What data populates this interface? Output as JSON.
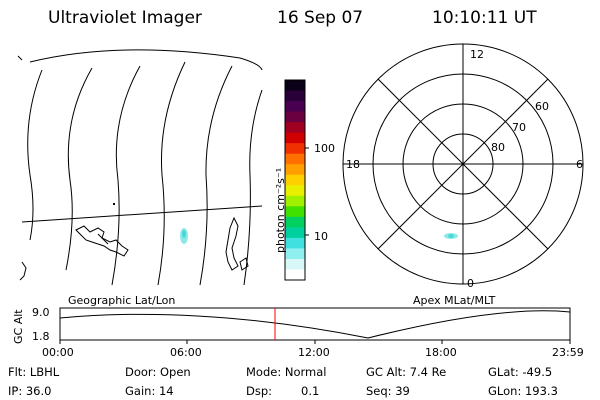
{
  "header": {
    "title": "Ultraviolet Imager",
    "date": "16 Sep 07",
    "time": "10:10:11 UT"
  },
  "colorbar": {
    "unit_label": "photon cm⁻²s⁻¹",
    "ticks": [
      "100",
      "10"
    ],
    "colors": [
      "#0a0018",
      "#2a0038",
      "#4a0050",
      "#6a0040",
      "#a00020",
      "#d00000",
      "#f03000",
      "#ff7000",
      "#ffa000",
      "#ffd000",
      "#e8f000",
      "#a0f000",
      "#40e000",
      "#00d060",
      "#00d0a0",
      "#40e0e0",
      "#90f0f0",
      "#d8f8f8",
      "#ffffff"
    ]
  },
  "map_left": {
    "label": "Geographic Lat/Lon"
  },
  "polar": {
    "label": "Apex  MLat/MLT",
    "mlt_labels": {
      "top": "12",
      "left": "18",
      "right": "6",
      "bottom": "0"
    },
    "lat_labels": [
      "60",
      "70",
      "80"
    ]
  },
  "altitude_plot": {
    "ylabel": "GC Alt",
    "yticks": [
      "9.0",
      "1.8"
    ],
    "xticks": [
      "00:00",
      "06:00",
      "12:00",
      "18:00",
      "23:59"
    ],
    "current_marker_color": "#ff0000"
  },
  "status": {
    "filter": "Flt: LBHL",
    "ip": "IP: 36.0",
    "door": "Door: Open",
    "gain": "Gain: 14",
    "mode": "Mode: Normal",
    "dsp_label": "Dsp:",
    "dsp_value": "0.1",
    "gc_alt": "GC Alt: 7.4 Re",
    "seq": "Seq: 39",
    "glat": "GLat: -49.5",
    "glon": "GLon: 193.3"
  }
}
